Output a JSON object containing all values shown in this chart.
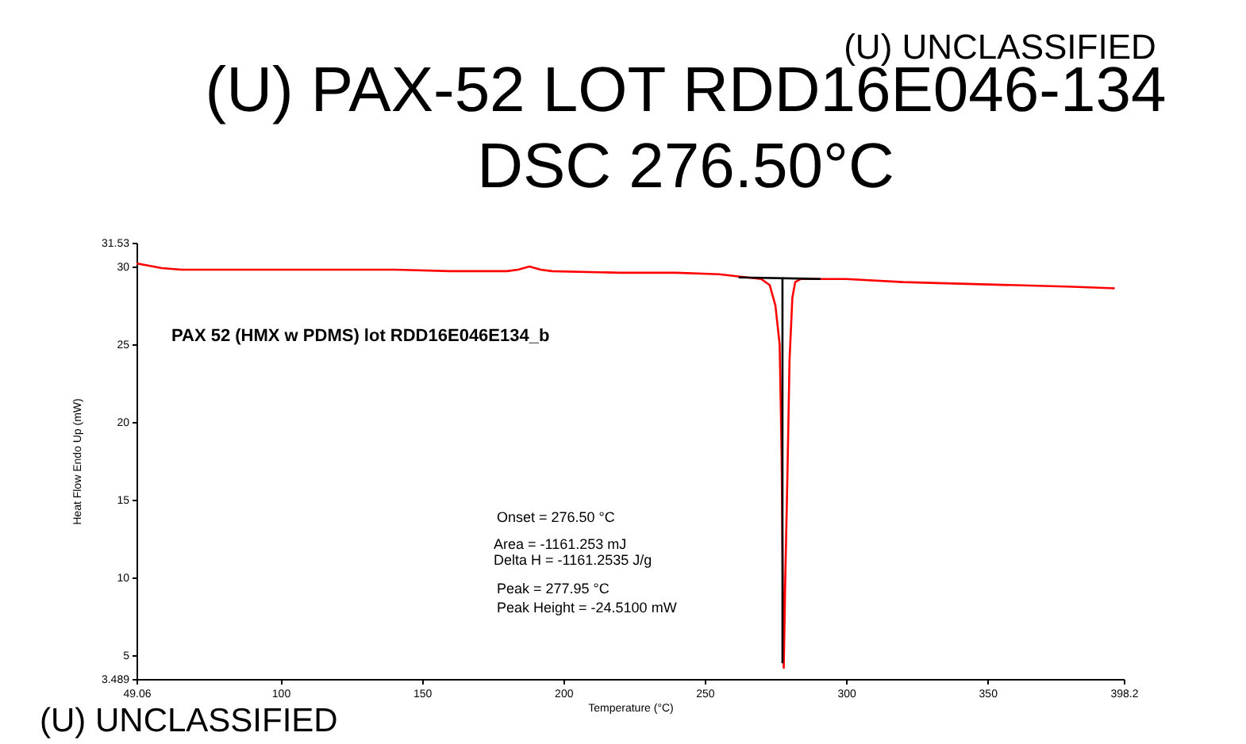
{
  "chart_data": {
    "type": "line",
    "title": "(U) PAX-52 LOT RDD16E046-134",
    "subtitle": "DSC    276.50°C",
    "xlabel": "Temperature (°C)",
    "ylabel": "Heat Flow Endo Up (mW)",
    "xlim": [
      49.06,
      398.2
    ],
    "xticks": [
      49.06,
      100,
      150,
      200,
      250,
      300,
      350,
      398.2
    ],
    "ylim": [
      3.489,
      31.53
    ],
    "yticks": [
      3.489,
      5,
      10,
      15,
      20,
      25,
      30,
      31.53
    ],
    "grid": false,
    "marker": "none",
    "line_style": "solid",
    "series": [
      {
        "color": "#ff0000",
        "x": [
          49.06,
          52,
          58,
          65,
          80,
          120,
          140,
          160,
          180,
          184,
          188,
          192,
          196,
          220,
          240,
          255,
          265,
          270,
          273,
          275,
          276.5,
          277.2,
          277.6,
          277.95,
          278.5,
          279.3,
          280,
          281,
          282,
          284,
          300,
          320,
          340,
          360,
          380,
          395
        ],
        "values": [
          30.2,
          30.1,
          29.9,
          29.8,
          29.8,
          29.8,
          29.8,
          29.7,
          29.7,
          29.8,
          30.0,
          29.8,
          29.7,
          29.6,
          29.6,
          29.5,
          29.3,
          29.2,
          28.8,
          27.5,
          25,
          18,
          10,
          4.2,
          10,
          17,
          24,
          28,
          29,
          29.2,
          29.2,
          29.0,
          28.9,
          28.8,
          28.7,
          28.6
        ]
      },
      {
        "color": "#000000",
        "x": [
          262,
          291
        ],
        "values": [
          29.3,
          29.2
        ]
      },
      {
        "color": "#000000",
        "x": [
          277.5,
          277.5
        ],
        "values": [
          29.3,
          4.5
        ]
      }
    ],
    "annotations": [
      "PAX 52 (HMX w PDMS) lot RDD16E046E134_b",
      "Onset = 276.50 °C",
      "Area = -1161.253 mJ",
      "Delta H = -1161.2535 J/g",
      "Peak = 277.95 °C",
      "Peak Height = -24.5100 mW",
      "(U) UNCLASSIFIED",
      "(U) UNCLASSIFIED"
    ]
  }
}
